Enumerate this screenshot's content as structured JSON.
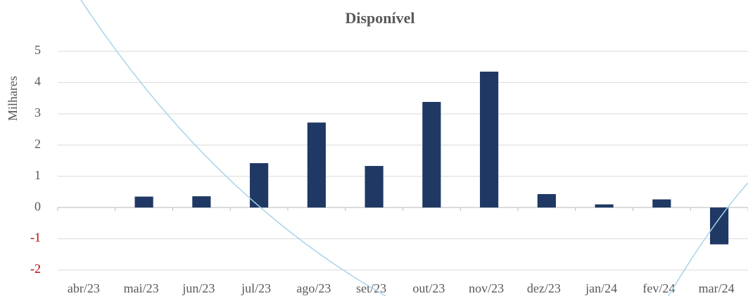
{
  "chart_data": {
    "type": "bar",
    "title": "Disponível",
    "y_label": "Milhares",
    "categories": [
      "abr/23",
      "mai/23",
      "jun/23",
      "jul/23",
      "ago/23",
      "set/23",
      "out/23",
      "nov/23",
      "dez/23",
      "jan/24",
      "fev/24",
      "mar/24"
    ],
    "values": [
      0,
      0.35,
      0.36,
      1.42,
      2.72,
      1.33,
      3.38,
      4.35,
      0.43,
      0.1,
      0.26,
      -1.18
    ],
    "color": "#1f3864",
    "negative_tick_color": "#c00000",
    "ylim": [
      -2,
      5
    ],
    "yticks": [
      -2,
      -1,
      0,
      1,
      2,
      3,
      4,
      5
    ],
    "grid": true
  }
}
